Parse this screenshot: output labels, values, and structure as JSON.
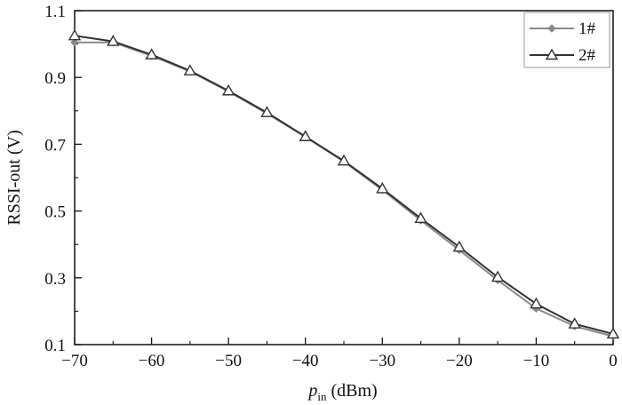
{
  "chart_data": {
    "type": "line",
    "title": "",
    "xlabel": {
      "main": "p",
      "sub": "in",
      "unit": " (dBm)"
    },
    "ylabel": "RSSI-out (V)",
    "xlim": [
      -70,
      0
    ],
    "ylim": [
      0.1,
      1.1
    ],
    "xticks": [
      -70,
      -60,
      -50,
      -40,
      -30,
      -20,
      -10,
      0
    ],
    "xtick_labels": [
      "−70",
      "−60",
      "−50",
      "−40",
      "−30",
      "−20",
      "−10",
      "0"
    ],
    "yticks": [
      0.1,
      0.3,
      0.5,
      0.7,
      0.9,
      1.1
    ],
    "ytick_labels": [
      "0.1",
      "0.3",
      "0.5",
      "0.7",
      "0.9",
      "1.1"
    ],
    "legend_position": "top-right",
    "x": [
      -70,
      -65,
      -60,
      -55,
      -50,
      -45,
      -40,
      -35,
      -30,
      -25,
      -20,
      -15,
      -10,
      -5,
      0
    ],
    "series": [
      {
        "name": "1#",
        "marker": "diamond",
        "color": "#8a8a8a",
        "values": [
          1.005,
          1.005,
          0.965,
          0.918,
          0.858,
          0.792,
          0.722,
          0.648,
          0.563,
          0.472,
          0.383,
          0.293,
          0.208,
          0.155,
          0.125
        ]
      },
      {
        "name": "2#",
        "marker": "triangle",
        "color": "#333333",
        "values": [
          1.025,
          1.008,
          0.968,
          0.92,
          0.86,
          0.795,
          0.723,
          0.65,
          0.567,
          0.478,
          0.392,
          0.302,
          0.222,
          0.162,
          0.132
        ]
      }
    ]
  }
}
